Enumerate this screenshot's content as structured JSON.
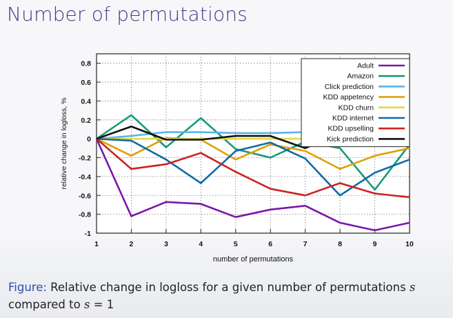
{
  "slide": {
    "title": "Number of permutations",
    "caption": {
      "label": "Figure:",
      "text_1": " Relative change in logloss for a given number of permutations ",
      "var_1": "s",
      "text_2": "compared to ",
      "var_2": "s",
      "text_3": " = 1"
    }
  },
  "chart_data": {
    "type": "line",
    "xlabel": "number of permutations",
    "ylabel": "relative change in logloss, %",
    "x": [
      1,
      2,
      3,
      4,
      5,
      6,
      7,
      8,
      9,
      10
    ],
    "xlim": [
      1,
      10
    ],
    "ylim": [
      -1,
      0.9
    ],
    "yticks": [
      -1,
      -0.8,
      -0.6,
      -0.4,
      -0.2,
      0,
      0.2,
      0.4,
      0.6,
      0.8
    ],
    "ytick_labels": [
      "-1",
      "-0.8",
      "-0.6",
      "-0.4",
      "-0.2",
      "0",
      "0.2",
      "0.4",
      "0.6",
      "0.8"
    ],
    "grid": true,
    "legend_position": "top-right",
    "series": [
      {
        "name": "Adult",
        "color": "#7a16a8",
        "values": [
          0,
          -0.82,
          -0.67,
          -0.69,
          -0.83,
          -0.75,
          -0.71,
          -0.89,
          -0.97,
          -0.89
        ]
      },
      {
        "name": "Amazon",
        "color": "#169a7a",
        "values": [
          0,
          0.25,
          -0.09,
          0.22,
          -0.11,
          -0.2,
          -0.03,
          -0.1,
          -0.54,
          -0.06
        ]
      },
      {
        "name": "Click prediction",
        "color": "#5ab4e8",
        "values": [
          0,
          0.03,
          0.07,
          0.07,
          0.06,
          0.06,
          0.07,
          0.07,
          0.08,
          0.09
        ]
      },
      {
        "name": "KDD appetency",
        "color": "#e0a000",
        "values": [
          0,
          -0.18,
          0.01,
          -0.01,
          -0.22,
          -0.06,
          -0.13,
          -0.32,
          -0.18,
          -0.1
        ]
      },
      {
        "name": "KDD churn",
        "color": "#e0d84a",
        "values": [
          0,
          0,
          0,
          0,
          0,
          0,
          0,
          0,
          0,
          0
        ]
      },
      {
        "name": "KDD internet",
        "color": "#0f6aa8",
        "values": [
          0,
          -0.02,
          -0.22,
          -0.47,
          -0.13,
          -0.04,
          -0.21,
          -0.6,
          -0.36,
          -0.22
        ]
      },
      {
        "name": "KDD upselling",
        "color": "#cc2222",
        "values": [
          0,
          -0.32,
          -0.27,
          -0.15,
          -0.35,
          -0.53,
          -0.6,
          -0.47,
          -0.58,
          -0.62
        ]
      },
      {
        "name": "Kick prediction",
        "color": "#111111",
        "values": [
          0,
          0.13,
          -0.01,
          -0.01,
          0.03,
          0.03,
          -0.1,
          0.06,
          0.02,
          0.04
        ]
      }
    ]
  }
}
